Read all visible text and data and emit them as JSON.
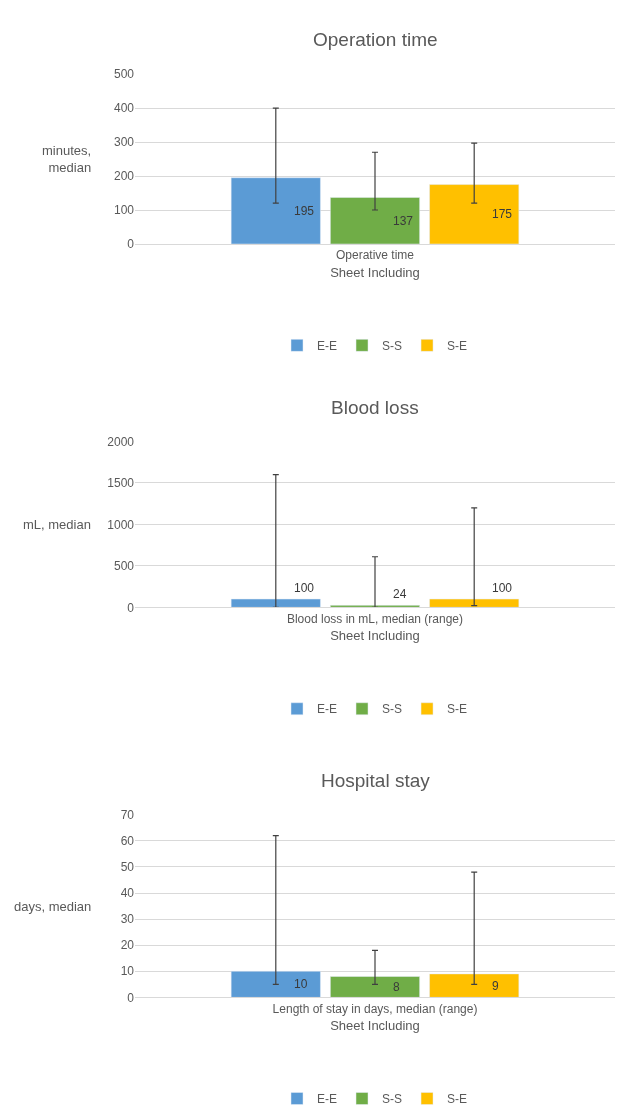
{
  "chart_data": [
    {
      "type": "bar",
      "title": "Operation time",
      "xlabel": "Sheet Including",
      "ylabel": "minutes, median",
      "categories": [
        "Operative time"
      ],
      "series": [
        {
          "name": "E-E",
          "color": "#5b9bd5",
          "values": [
            195
          ],
          "errors": [
            [
              120,
              400
            ]
          ]
        },
        {
          "name": "S-S",
          "color": "#70ad47",
          "values": [
            137
          ],
          "errors": [
            [
              100,
              270
            ]
          ]
        },
        {
          "name": "S-E",
          "color": "#ffc000",
          "values": [
            175
          ],
          "errors": [
            [
              120,
              297
            ]
          ]
        }
      ],
      "ylim": [
        0,
        500
      ],
      "yticks": [
        0,
        100,
        200,
        300,
        400,
        500
      ],
      "grid": "y",
      "legend": "bottom",
      "data_labels": true
    },
    {
      "type": "bar",
      "title": "Blood loss",
      "xlabel": "Sheet Including",
      "ylabel": "mL, median",
      "categories": [
        "Blood loss in mL, median (range)"
      ],
      "series": [
        {
          "name": "E-E",
          "color": "#5b9bd5",
          "values": [
            100
          ],
          "errors": [
            [
              0,
              1600
            ]
          ]
        },
        {
          "name": "S-S",
          "color": "#70ad47",
          "values": [
            24
          ],
          "errors": [
            [
              0,
              610
            ]
          ]
        },
        {
          "name": "S-E",
          "color": "#ffc000",
          "values": [
            100
          ],
          "errors": [
            [
              20,
              1200
            ]
          ]
        }
      ],
      "ylim": [
        0,
        2000
      ],
      "yticks": [
        0,
        500,
        1000,
        1500,
        2000
      ],
      "grid": "y",
      "legend": "bottom",
      "data_labels": true
    },
    {
      "type": "bar",
      "title": "Hospital stay",
      "xlabel": "Sheet Including",
      "ylabel": "days, median",
      "categories": [
        "Length of stay in days, median (range)"
      ],
      "series": [
        {
          "name": "E-E",
          "color": "#5b9bd5",
          "values": [
            10
          ],
          "errors": [
            [
              5,
              62
            ]
          ]
        },
        {
          "name": "S-S",
          "color": "#70ad47",
          "values": [
            8
          ],
          "errors": [
            [
              5,
              18
            ]
          ]
        },
        {
          "name": "S-E",
          "color": "#ffc000",
          "values": [
            9
          ],
          "errors": [
            [
              5,
              48
            ]
          ]
        }
      ],
      "ylim": [
        0,
        70
      ],
      "yticks": [
        0,
        10,
        20,
        30,
        40,
        50,
        60,
        70
      ],
      "grid": "y",
      "legend": "bottom",
      "data_labels": true
    }
  ]
}
